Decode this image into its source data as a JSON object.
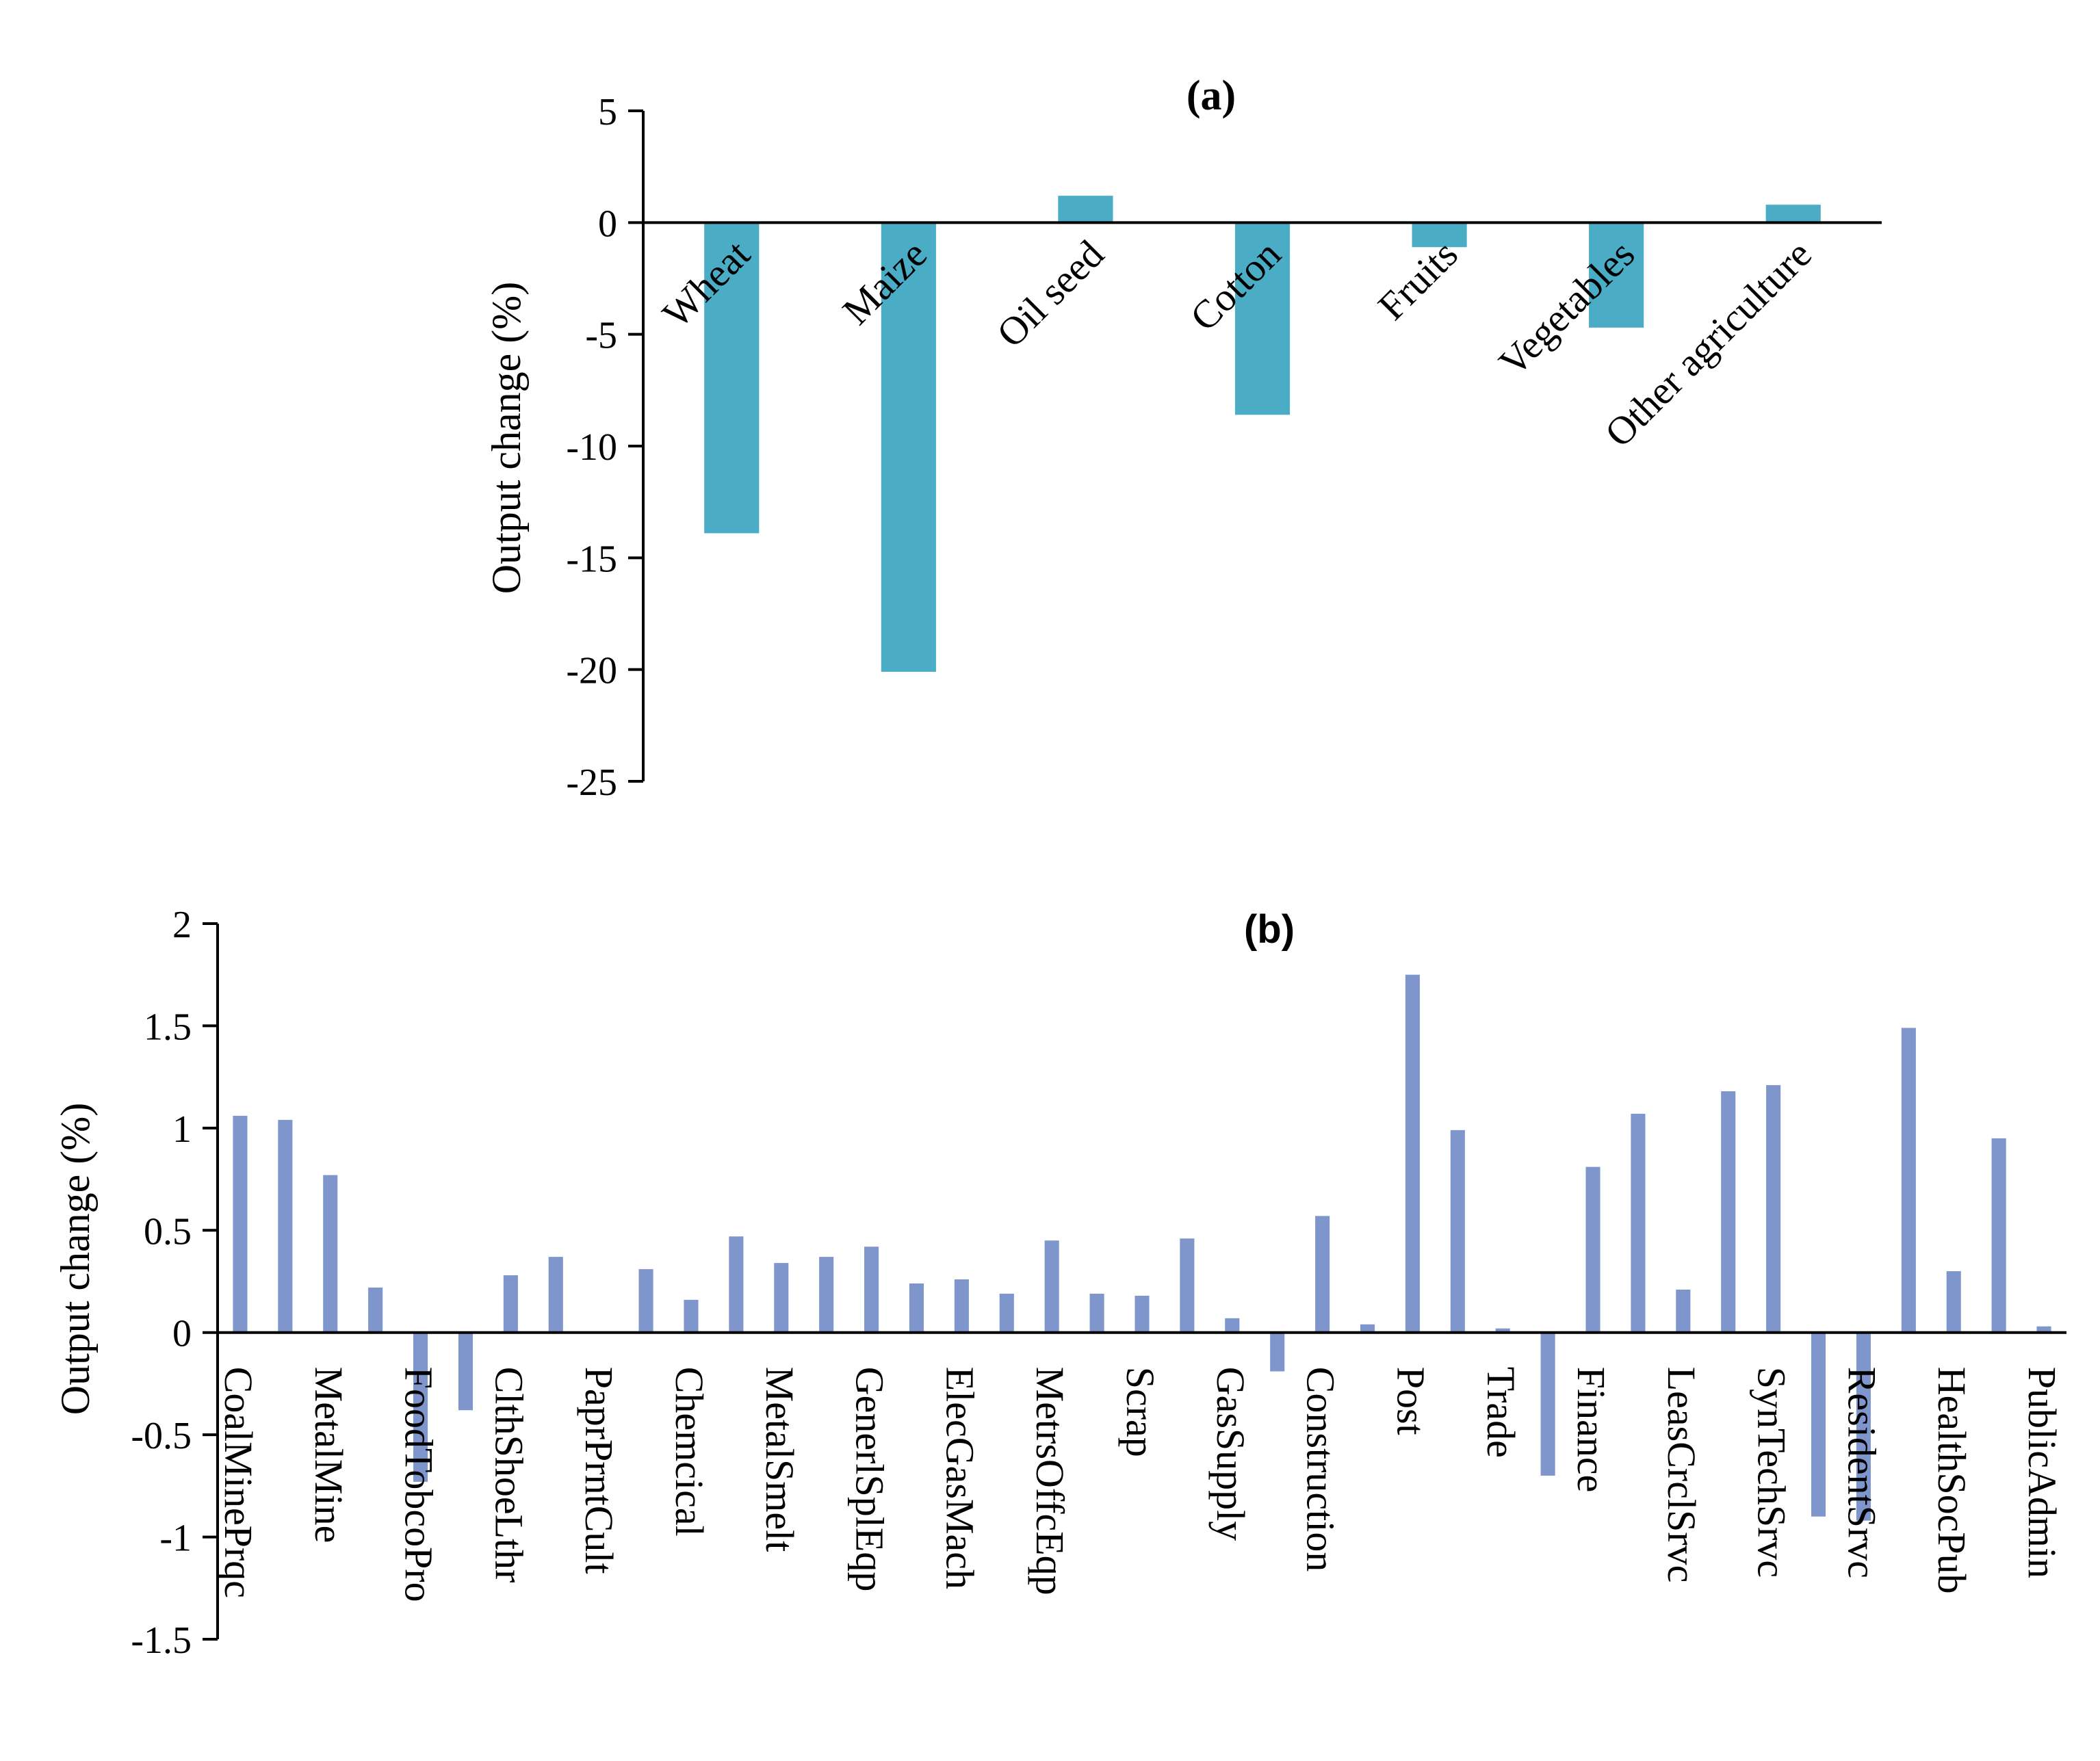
{
  "chart_data": [
    {
      "type": "bar",
      "title": "(a)",
      "xlabel": "",
      "ylabel": "Output change (%)",
      "ylim": [
        -25,
        5
      ],
      "yticks": [
        5,
        0,
        -5,
        -10,
        -15,
        -20,
        -25
      ],
      "categories": [
        "Wheat",
        "Maize",
        "Oil seed",
        "Cotton",
        "Fruits",
        "Vegetables",
        "Other agriculture"
      ],
      "values": [
        -13.9,
        -20.1,
        1.2,
        -8.6,
        -1.1,
        -4.7,
        0.8
      ],
      "color": "#4BACC6",
      "grid": false,
      "legend": "none"
    },
    {
      "type": "bar",
      "title": "(b)",
      "xlabel": "",
      "ylabel": "Output change (%)",
      "ylim": [
        -1.5,
        2
      ],
      "yticks": [
        2,
        1.5,
        1,
        0.5,
        0,
        -0.5,
        -1,
        -1.5
      ],
      "categories": [
        "CoalMinePrqc",
        "",
        "MetalMine",
        "",
        "FoodTobcoPro",
        "",
        "ClthShoeLthr",
        "",
        "PaprPrntCult",
        "",
        "Chemcical",
        "",
        "MetalSmelt",
        "",
        "GenerlSplEqp",
        "",
        "ElecGasMach",
        "",
        "MetrsOffcEqp",
        "",
        "Scrap",
        "",
        "GasSupply",
        "",
        "Construction",
        "",
        "Post",
        "",
        "Trade",
        "",
        "Finance",
        "",
        "LeasCrclSrvc",
        "",
        "SynTechSrvc",
        "",
        "ResidentSrvc",
        "",
        "HealthSocPub",
        "",
        "PublicAdmin"
      ],
      "values": [
        1.06,
        1.04,
        0.77,
        0.22,
        -0.73,
        -0.38,
        0.28,
        0.37,
        0.0,
        0.31,
        0.16,
        0.47,
        0.34,
        0.37,
        0.42,
        0.24,
        0.26,
        0.19,
        0.45,
        0.19,
        0.18,
        0.46,
        0.07,
        -0.19,
        0.57,
        0.04,
        1.75,
        0.99,
        0.02,
        -0.7,
        0.81,
        1.07,
        0.21,
        1.18,
        1.21,
        -0.9,
        -0.92,
        1.49,
        0.3,
        0.95,
        0.03
      ],
      "color": "#7F96CC",
      "grid": false,
      "legend": "none"
    }
  ]
}
